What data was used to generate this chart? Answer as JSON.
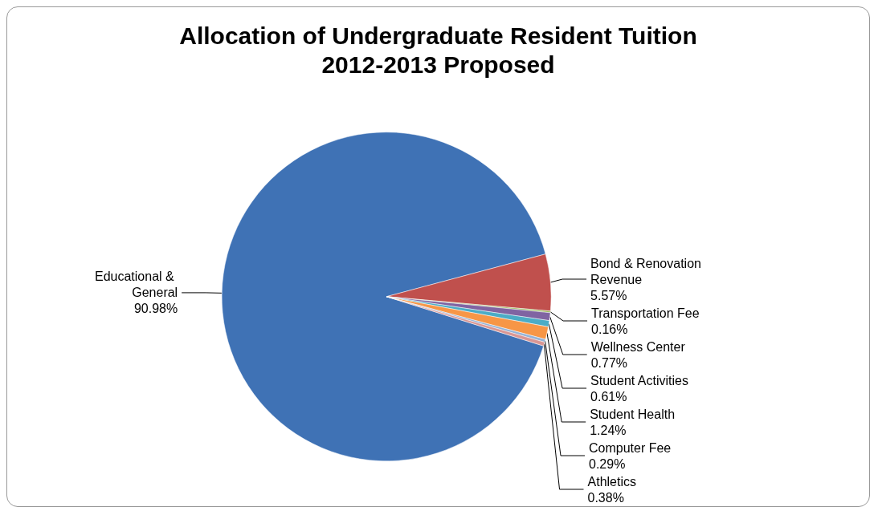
{
  "chart_data": {
    "type": "pie",
    "title": "Allocation of Undergraduate Resident Tuition\n2012-2013 Proposed",
    "categories": [
      "Educational & General",
      "Bond & Renovation Revenue",
      "Transportation Fee",
      "Wellness Center",
      "Student Activities",
      "Student Health",
      "Computer Fee",
      "Athletics"
    ],
    "values": [
      90.98,
      5.57,
      0.16,
      0.77,
      0.61,
      1.24,
      0.29,
      0.38
    ],
    "colors": [
      "#3f72b5",
      "#c0504d",
      "#9bbb59",
      "#8064a2",
      "#4bacc6",
      "#f79646",
      "#95b3d7",
      "#d99694"
    ],
    "value_labels": [
      "90.98%",
      "5.57%",
      "0.16%",
      "0.77%",
      "0.61%",
      "1.24%",
      "0.29%",
      "0.38%"
    ],
    "legend": false
  }
}
